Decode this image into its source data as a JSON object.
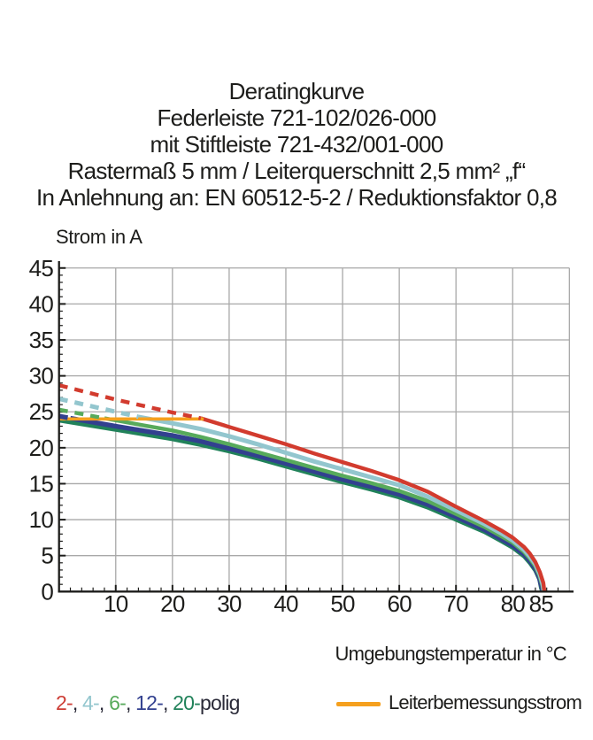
{
  "header": {
    "lines": [
      "Deratingkurve",
      "Federleiste 721-102/026-000",
      "mit Stiftleiste 721-432/001-000",
      "Rastermaß 5 mm / Leiterquerschnitt 2,5 mm² „f“",
      "In Anlehnung an: EN 60512-5-2 / Reduktionsfaktor 0,8"
    ]
  },
  "axes": {
    "y_label": "Strom in A",
    "x_label": "Umgebungstemperatur in °C"
  },
  "legend": {
    "series_tokens": [
      {
        "text": "2-",
        "color": "#cd3e36"
      },
      {
        "text": ", ",
        "color": "#2a2a38"
      },
      {
        "text": "4-",
        "color": "#93c6ce"
      },
      {
        "text": ", ",
        "color": "#2a2a38"
      },
      {
        "text": "6-",
        "color": "#57aa5b"
      },
      {
        "text": ", ",
        "color": "#2a2a38"
      },
      {
        "text": "12-",
        "color": "#32408f"
      },
      {
        "text": ", ",
        "color": "#2a2a38"
      },
      {
        "text": "20-",
        "color": "#21825a"
      },
      {
        "text": "polig",
        "color": "#2a2a38"
      }
    ],
    "rated": {
      "label": "Leiterbemessungsstrom",
      "color": "#f5a01e"
    }
  },
  "chart_data": {
    "type": "line",
    "title": "Deratingkurve",
    "subtitle_lines": [
      "Federleiste 721-102/026-000",
      "mit Stiftleiste 721-432/001-000",
      "Rastermaß 5 mm / Leiterquerschnitt 2,5 mm² „f“",
      "In Anlehnung an: EN 60512-5-2 / Reduktionsfaktor 0,8"
    ],
    "xlabel": "Umgebungstemperatur in °C",
    "ylabel": "Strom in A",
    "xlim": [
      0,
      90
    ],
    "ylim": [
      0,
      45
    ],
    "x_grid_step": 10,
    "y_grid_step": 5,
    "x_tick_labels": [
      10,
      20,
      30,
      40,
      50,
      60,
      70,
      80,
      85
    ],
    "y_tick_labels": [
      0,
      5,
      10,
      15,
      20,
      25,
      30,
      35,
      40,
      45
    ],
    "grid": true,
    "legend_position": "bottom",
    "grid_color": "#a8a8a8",
    "axis_color": "#1d1d1b",
    "note": "dashed segment = portion above rated conductor current; solid_from gives temperature where curve becomes solid",
    "series": [
      {
        "name": "20-polig",
        "color": "#21825a",
        "width": 4.6,
        "solid_from": 0,
        "points": [
          [
            0,
            23.8
          ],
          [
            10,
            22.5
          ],
          [
            20,
            21.2
          ],
          [
            25,
            20.4
          ],
          [
            30,
            19.5
          ],
          [
            35,
            18.5
          ],
          [
            40,
            17.4
          ],
          [
            45,
            16.3
          ],
          [
            50,
            15.2
          ],
          [
            55,
            14.2
          ],
          [
            60,
            13.1
          ],
          [
            65,
            11.7
          ],
          [
            70,
            10.0
          ],
          [
            75,
            8.3
          ],
          [
            78,
            7.0
          ],
          [
            80,
            6.1
          ],
          [
            82,
            4.9
          ],
          [
            83,
            4.0
          ],
          [
            84,
            2.9
          ],
          [
            84.7,
            1.7
          ],
          [
            85,
            0.5
          ],
          [
            85.2,
            0
          ]
        ]
      },
      {
        "name": "12-polig",
        "color": "#32408f",
        "width": 5.4,
        "solid_from": 2,
        "points": [
          [
            0,
            24.4
          ],
          [
            2,
            24.1
          ],
          [
            10,
            23.0
          ],
          [
            20,
            21.7
          ],
          [
            25,
            20.9
          ],
          [
            30,
            19.9
          ],
          [
            35,
            18.9
          ],
          [
            40,
            17.8
          ],
          [
            45,
            16.7
          ],
          [
            50,
            15.6
          ],
          [
            55,
            14.6
          ],
          [
            60,
            13.5
          ],
          [
            65,
            12.1
          ],
          [
            70,
            10.4
          ],
          [
            75,
            8.6
          ],
          [
            78,
            7.3
          ],
          [
            80,
            6.4
          ],
          [
            82,
            5.2
          ],
          [
            83,
            4.3
          ],
          [
            84,
            3.2
          ],
          [
            84.7,
            1.9
          ],
          [
            85.1,
            0.7
          ],
          [
            85.3,
            0
          ]
        ]
      },
      {
        "name": "6-polig",
        "color": "#57aa5b",
        "width": 4.4,
        "solid_from": 8,
        "points": [
          [
            0,
            25.3
          ],
          [
            4,
            24.7
          ],
          [
            8,
            24.1
          ],
          [
            15,
            23.1
          ],
          [
            20,
            22.4
          ],
          [
            25,
            21.5
          ],
          [
            30,
            20.5
          ],
          [
            35,
            19.4
          ],
          [
            40,
            18.3
          ],
          [
            45,
            17.2
          ],
          [
            50,
            16.1
          ],
          [
            55,
            15.1
          ],
          [
            60,
            14.0
          ],
          [
            65,
            12.6
          ],
          [
            70,
            10.8
          ],
          [
            75,
            9.0
          ],
          [
            78,
            7.7
          ],
          [
            80,
            6.8
          ],
          [
            82,
            5.5
          ],
          [
            83,
            4.6
          ],
          [
            84,
            3.5
          ],
          [
            84.7,
            2.2
          ],
          [
            85.2,
            0.9
          ],
          [
            85.4,
            0
          ]
        ]
      },
      {
        "name": "4-polig",
        "color": "#93c6ce",
        "width": 5.0,
        "solid_from": 14,
        "points": [
          [
            0,
            26.8
          ],
          [
            5,
            25.9
          ],
          [
            10,
            25.0
          ],
          [
            14,
            24.3
          ],
          [
            20,
            23.4
          ],
          [
            25,
            22.6
          ],
          [
            30,
            21.6
          ],
          [
            35,
            20.5
          ],
          [
            40,
            19.3
          ],
          [
            45,
            18.1
          ],
          [
            50,
            17.0
          ],
          [
            55,
            15.9
          ],
          [
            60,
            14.8
          ],
          [
            65,
            13.2
          ],
          [
            70,
            11.3
          ],
          [
            75,
            9.4
          ],
          [
            78,
            8.1
          ],
          [
            80,
            7.1
          ],
          [
            82,
            5.8
          ],
          [
            83,
            4.9
          ],
          [
            84,
            3.8
          ],
          [
            84.8,
            2.4
          ],
          [
            85.3,
            1.0
          ],
          [
            85.5,
            0
          ]
        ]
      },
      {
        "name": "2-polig",
        "color": "#d23b2e",
        "width": 4.4,
        "solid_from": 25,
        "points": [
          [
            0,
            28.7
          ],
          [
            5,
            27.7
          ],
          [
            10,
            26.7
          ],
          [
            15,
            25.8
          ],
          [
            20,
            24.9
          ],
          [
            25,
            24.1
          ],
          [
            30,
            22.9
          ],
          [
            35,
            21.7
          ],
          [
            40,
            20.5
          ],
          [
            45,
            19.2
          ],
          [
            50,
            18.0
          ],
          [
            55,
            16.8
          ],
          [
            60,
            15.5
          ],
          [
            65,
            13.9
          ],
          [
            70,
            11.8
          ],
          [
            75,
            9.8
          ],
          [
            78,
            8.5
          ],
          [
            80,
            7.5
          ],
          [
            82,
            6.2
          ],
          [
            83,
            5.3
          ],
          [
            84,
            4.1
          ],
          [
            84.8,
            2.7
          ],
          [
            85.4,
            1.2
          ],
          [
            85.6,
            0
          ]
        ]
      }
    ],
    "rated_line": {
      "label": "Leiterbemessungsstrom",
      "color": "#f5a01e",
      "value": 24,
      "x_from": 0,
      "x_to": 25.5,
      "width": 3.6
    }
  }
}
